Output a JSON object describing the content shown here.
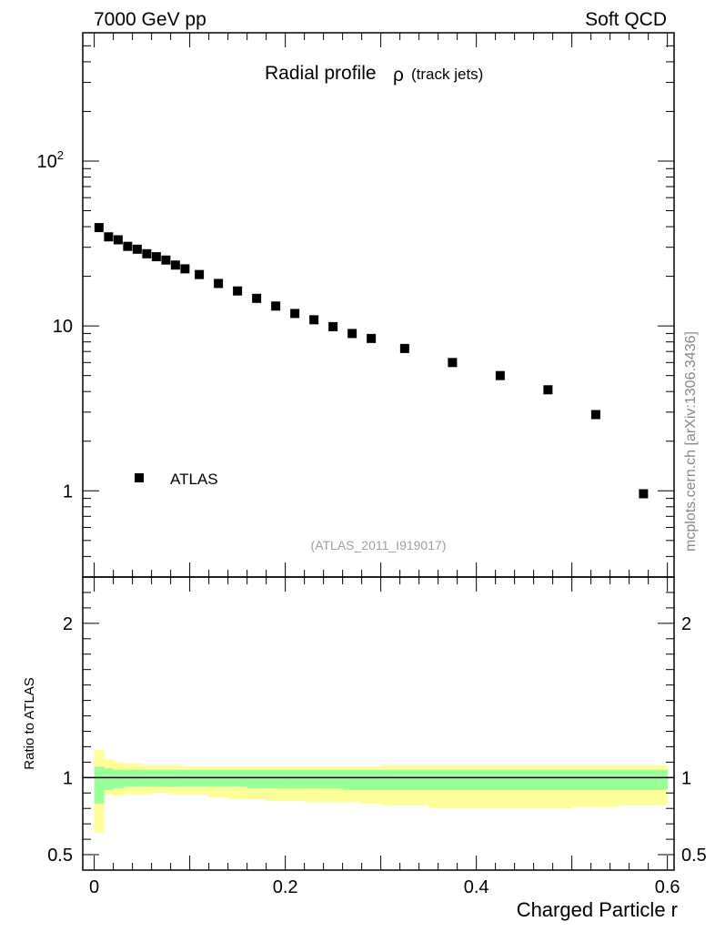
{
  "header": {
    "left": "7000 GeV pp",
    "right": "Soft QCD"
  },
  "sidebar_label": "mcplots.cern.ch [arXiv:1306.3436]",
  "chart_data": {
    "type": "scatter",
    "title": "Radial profile",
    "title_symbol": "ρ",
    "title_suffix": "(track jets)",
    "analysis_tag": "(ATLAS_2011_I919017)",
    "xlabel": "Charged Particle r",
    "xlim": [
      -0.012,
      0.607
    ],
    "x_ticks": [
      {
        "v": 0,
        "label": "0"
      },
      {
        "v": 0.2,
        "label": "0.2"
      },
      {
        "v": 0.4,
        "label": "0.4"
      },
      {
        "v": 0.6,
        "label": "0.6"
      }
    ],
    "main": {
      "yscale": "log",
      "ylim": [
        0.3,
        600
      ],
      "y_ticks": [
        {
          "v": 1,
          "label": "1"
        },
        {
          "v": 10,
          "label": "10"
        },
        {
          "v": 100,
          "label": "10",
          "sup": "2"
        }
      ],
      "series": [
        {
          "name": "ATLAS",
          "marker": "square",
          "color": "#000000",
          "x": [
            0.005,
            0.015,
            0.025,
            0.035,
            0.045,
            0.055,
            0.065,
            0.075,
            0.085,
            0.095,
            0.11,
            0.13,
            0.15,
            0.17,
            0.19,
            0.21,
            0.23,
            0.25,
            0.27,
            0.29,
            0.325,
            0.375,
            0.425,
            0.475,
            0.525,
            0.575
          ],
          "y": [
            39.5,
            34.7,
            33.3,
            30.4,
            29.2,
            27.4,
            26.3,
            25.1,
            23.4,
            22.2,
            20.5,
            18.1,
            16.3,
            14.7,
            13.2,
            11.9,
            10.9,
            9.9,
            9.0,
            8.4,
            7.3,
            6.0,
            5.0,
            4.1,
            2.9,
            0.96
          ]
        }
      ]
    },
    "ratio": {
      "ylabel": "Ratio to ATLAS",
      "ylim": [
        0.4,
        2.3
      ],
      "y_ticks": [
        {
          "v": 0.5,
          "label": "0.5"
        },
        {
          "v": 1,
          "label": "1"
        },
        {
          "v": 2,
          "label": "2"
        }
      ],
      "reference_line": 1.0,
      "band_edges": [
        0,
        0.01,
        0.02,
        0.03,
        0.04,
        0.05,
        0.06,
        0.07,
        0.08,
        0.09,
        0.1,
        0.12,
        0.14,
        0.16,
        0.18,
        0.2,
        0.22,
        0.24,
        0.26,
        0.28,
        0.3,
        0.35,
        0.4,
        0.45,
        0.5,
        0.55,
        0.6
      ],
      "yellow_band": {
        "color": "#ffff99",
        "lo": [
          0.64,
          0.89,
          0.88,
          0.89,
          0.89,
          0.89,
          0.9,
          0.9,
          0.89,
          0.89,
          0.89,
          0.87,
          0.86,
          0.86,
          0.85,
          0.85,
          0.84,
          0.84,
          0.84,
          0.83,
          0.82,
          0.8,
          0.8,
          0.8,
          0.81,
          0.82
        ],
        "hi": [
          1.18,
          1.12,
          1.1,
          1.09,
          1.09,
          1.08,
          1.08,
          1.08,
          1.08,
          1.07,
          1.07,
          1.07,
          1.07,
          1.07,
          1.07,
          1.07,
          1.07,
          1.07,
          1.07,
          1.07,
          1.08,
          1.08,
          1.08,
          1.08,
          1.08,
          1.08
        ]
      },
      "green_band": {
        "color": "#99ff99",
        "lo": [
          0.83,
          0.92,
          0.93,
          0.94,
          0.94,
          0.94,
          0.94,
          0.94,
          0.94,
          0.94,
          0.94,
          0.94,
          0.94,
          0.93,
          0.93,
          0.93,
          0.93,
          0.93,
          0.92,
          0.92,
          0.92,
          0.92,
          0.92,
          0.92,
          0.92,
          0.92
        ],
        "hi": [
          1.07,
          1.06,
          1.05,
          1.05,
          1.05,
          1.05,
          1.05,
          1.05,
          1.05,
          1.05,
          1.05,
          1.05,
          1.05,
          1.05,
          1.05,
          1.05,
          1.05,
          1.05,
          1.05,
          1.05,
          1.05,
          1.05,
          1.05,
          1.05,
          1.05,
          1.05
        ]
      }
    }
  }
}
